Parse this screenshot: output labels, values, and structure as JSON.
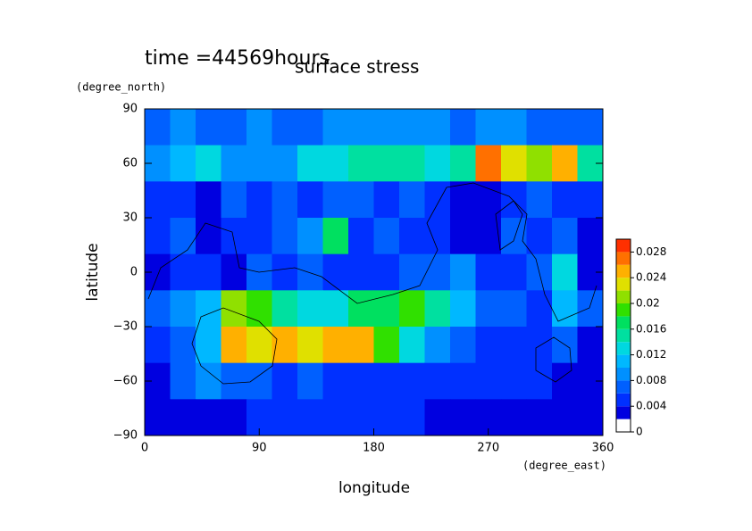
{
  "chart_data": {
    "type": "heatmap",
    "title": "surface stress",
    "subtitle": "time =44569hours",
    "x_label": "longitude",
    "x_unit": "(degree_east)",
    "y_label": "latitude",
    "y_unit": "(degree_north)",
    "x": [
      10,
      30,
      50,
      70,
      90,
      110,
      130,
      150,
      170,
      190,
      210,
      230,
      250,
      270,
      290,
      310,
      330,
      350
    ],
    "y": [
      80,
      60,
      40,
      20,
      0,
      -20,
      -40,
      -60,
      -80
    ],
    "z": [
      [
        0.006,
        0.008,
        0.006,
        0.006,
        0.008,
        0.006,
        0.006,
        0.008,
        0.008,
        0.008,
        0.008,
        0.008,
        0.006,
        0.008,
        0.008,
        0.006,
        0.006,
        0.006
      ],
      [
        0.008,
        0.01,
        0.012,
        0.008,
        0.008,
        0.008,
        0.012,
        0.012,
        0.014,
        0.014,
        0.014,
        0.012,
        0.014,
        0.026,
        0.022,
        0.02,
        0.024,
        0.014
      ],
      [
        0.004,
        0.004,
        0.002,
        0.006,
        0.004,
        0.006,
        0.004,
        0.006,
        0.006,
        0.004,
        0.006,
        0.004,
        0.002,
        0.002,
        0.004,
        0.006,
        0.004,
        0.004
      ],
      [
        0.004,
        0.006,
        0.002,
        0.004,
        0.004,
        0.006,
        0.008,
        0.016,
        0.004,
        0.006,
        0.004,
        0.004,
        0.002,
        0.002,
        0.006,
        0.004,
        0.006,
        0.002
      ],
      [
        0.002,
        0.004,
        0.004,
        0.002,
        0.006,
        0.004,
        0.006,
        0.004,
        0.004,
        0.004,
        0.006,
        0.006,
        0.008,
        0.004,
        0.004,
        0.006,
        0.012,
        0.002
      ],
      [
        0.006,
        0.008,
        0.01,
        0.02,
        0.018,
        0.014,
        0.012,
        0.012,
        0.016,
        0.016,
        0.018,
        0.014,
        0.01,
        0.006,
        0.006,
        0.004,
        0.01,
        0.006
      ],
      [
        0.004,
        0.006,
        0.01,
        0.024,
        0.022,
        0.024,
        0.022,
        0.024,
        0.024,
        0.018,
        0.012,
        0.008,
        0.006,
        0.004,
        0.004,
        0.004,
        0.006,
        0.002
      ],
      [
        0.002,
        0.006,
        0.008,
        0.006,
        0.006,
        0.004,
        0.006,
        0.004,
        0.004,
        0.004,
        0.004,
        0.004,
        0.004,
        0.004,
        0.004,
        0.004,
        0.002,
        0.002
      ],
      [
        0.002,
        0.002,
        0.002,
        0.002,
        0.004,
        0.004,
        0.004,
        0.004,
        0.004,
        0.004,
        0.004,
        0.002,
        0.002,
        0.002,
        0.002,
        0.002,
        0.002,
        0.002
      ]
    ],
    "levels": [
      0,
      0.002,
      0.004,
      0.006,
      0.008,
      0.01,
      0.012,
      0.014,
      0.016,
      0.018,
      0.02,
      0.022,
      0.024,
      0.026,
      0.028,
      0.03
    ],
    "colors": [
      "#ffffff",
      "#0000e0",
      "#0030ff",
      "#0060ff",
      "#0090ff",
      "#00b8ff",
      "#00d8e0",
      "#00e0a0",
      "#00e060",
      "#30e000",
      "#90e000",
      "#e0e000",
      "#ffb000",
      "#ff7000",
      "#ff3000"
    ],
    "xlim": [
      0,
      360
    ],
    "xticks": [
      0,
      90,
      180,
      270,
      360
    ],
    "ylim": [
      -90,
      90
    ],
    "yticks": [
      {
        "value": -90,
        "label": "−90"
      },
      {
        "value": -60,
        "label": "−60"
      },
      {
        "value": -30,
        "label": "−30"
      },
      0,
      30,
      60,
      90
    ],
    "colorbar_lim": [
      0,
      0.03
    ],
    "colorbar_ticks": [
      0,
      0.004,
      0.008,
      0.012,
      0.016,
      0.02,
      0.024,
      0.028
    ]
  }
}
